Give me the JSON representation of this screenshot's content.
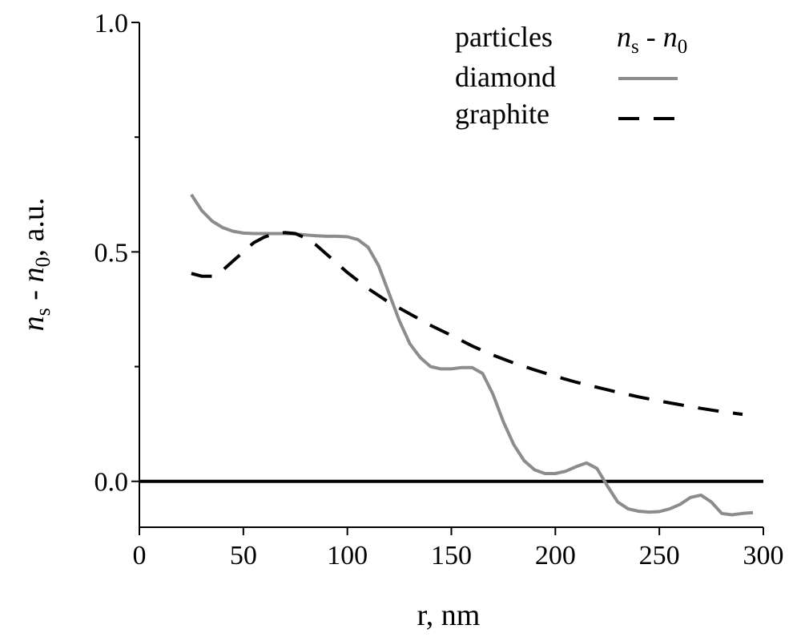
{
  "chart_data": {
    "type": "line",
    "xlabel": "r, nm",
    "ylabel": {
      "main": "n",
      "sub": "s",
      "dash": " - ",
      "main2": "n",
      "sub2": "0",
      "rest": ", a.u."
    },
    "xlim": [
      0,
      300
    ],
    "ylim": [
      -0.1,
      1.0
    ],
    "x_ticks": [
      "0",
      "50",
      "100",
      "150",
      "200",
      "250",
      "300"
    ],
    "x_tick_values": [
      0,
      50,
      100,
      150,
      200,
      250,
      300
    ],
    "y_ticks": [
      "0.0",
      "0.5",
      "1.0"
    ],
    "y_tick_values": [
      0.0,
      0.5,
      1.0
    ],
    "y_minor_tick_values": [
      0.25,
      0.75
    ],
    "zero_line": 0.0,
    "legend": {
      "placement": "top-right",
      "header_left": "particles",
      "header_right": {
        "main": "n",
        "sub": "s",
        "dash": " - ",
        "main2": "n",
        "sub2": "0"
      }
    },
    "series": [
      {
        "name": "diamond",
        "style": "solid",
        "color": "#8c8c8c",
        "x": [
          25,
          30,
          35,
          40,
          45,
          50,
          55,
          60,
          65,
          70,
          75,
          80,
          85,
          90,
          95,
          100,
          105,
          110,
          115,
          120,
          125,
          130,
          135,
          140,
          145,
          150,
          155,
          160,
          165,
          170,
          175,
          180,
          185,
          190,
          195,
          200,
          205,
          210,
          215,
          220,
          225,
          230,
          235,
          240,
          245,
          250,
          255,
          260,
          265,
          270,
          275,
          280,
          285,
          290,
          295
        ],
        "y": [
          0.625,
          0.59,
          0.567,
          0.553,
          0.545,
          0.541,
          0.54,
          0.54,
          0.54,
          0.54,
          0.539,
          0.537,
          0.535,
          0.534,
          0.534,
          0.533,
          0.527,
          0.51,
          0.47,
          0.41,
          0.35,
          0.3,
          0.27,
          0.25,
          0.245,
          0.245,
          0.248,
          0.248,
          0.235,
          0.19,
          0.13,
          0.08,
          0.045,
          0.025,
          0.017,
          0.017,
          0.022,
          0.032,
          0.04,
          0.028,
          -0.01,
          -0.045,
          -0.06,
          -0.065,
          -0.067,
          -0.066,
          -0.06,
          -0.05,
          -0.035,
          -0.03,
          -0.045,
          -0.07,
          -0.073,
          -0.07,
          -0.068
        ]
      },
      {
        "name": "graphite",
        "style": "dashed",
        "color": "#000000",
        "x": [
          25,
          30,
          35,
          40,
          45,
          50,
          55,
          60,
          65,
          70,
          75,
          80,
          85,
          90,
          95,
          100,
          110,
          120,
          130,
          140,
          150,
          160,
          170,
          180,
          190,
          200,
          210,
          220,
          230,
          240,
          250,
          260,
          270,
          280,
          290
        ],
        "y": [
          0.453,
          0.447,
          0.447,
          0.46,
          0.48,
          0.5,
          0.52,
          0.532,
          0.54,
          0.542,
          0.54,
          0.53,
          0.515,
          0.495,
          0.475,
          0.455,
          0.42,
          0.39,
          0.365,
          0.34,
          0.318,
          0.295,
          0.275,
          0.258,
          0.243,
          0.229,
          0.216,
          0.205,
          0.194,
          0.184,
          0.175,
          0.167,
          0.159,
          0.152,
          0.146
        ]
      }
    ]
  }
}
